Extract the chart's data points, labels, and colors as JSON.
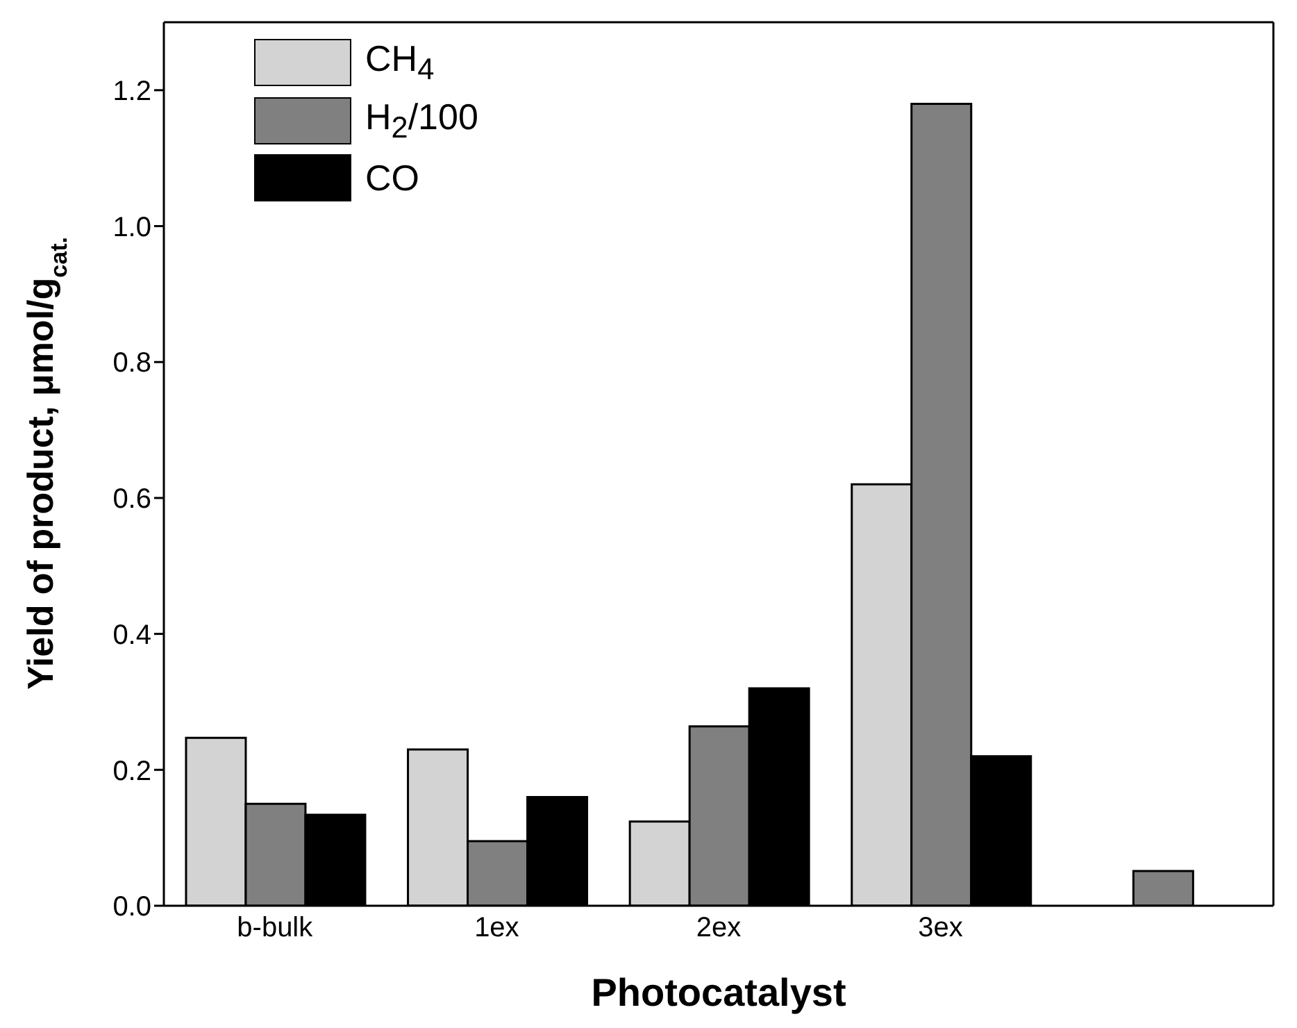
{
  "chart_data": {
    "type": "bar",
    "xlabel": "Photocatalyst",
    "ylabel": "Yield of product, μmol/g$_{cat.}$",
    "categories": [
      "b-bulk",
      "1ex",
      "2ex",
      "3ex",
      null
    ],
    "series": [
      {
        "name": "CH$_{4}$",
        "color": "#d3d3d3",
        "values": [
          0.247,
          0.23,
          0.124,
          0.62,
          null
        ]
      },
      {
        "name": "H$_{2}$/100",
        "color": "#808080",
        "values": [
          0.15,
          0.095,
          0.264,
          1.18,
          0.051
        ]
      },
      {
        "name": "CO",
        "color": "#000000",
        "values": [
          0.134,
          0.16,
          0.32,
          0.22,
          null
        ]
      }
    ],
    "ylim": [
      0,
      1.3
    ],
    "yticks": [
      {
        "value": 0,
        "label": "0.0"
      },
      {
        "value": 0.2,
        "label": "0.2"
      },
      {
        "value": 0.4,
        "label": "0.4"
      },
      {
        "value": 0.6,
        "label": "0.6"
      },
      {
        "value": 0.8,
        "label": "0.8"
      },
      {
        "value": 1,
        "label": "1.0"
      },
      {
        "value": 1.2,
        "label": "1.2"
      }
    ],
    "grid": false,
    "legend": "top left"
  }
}
